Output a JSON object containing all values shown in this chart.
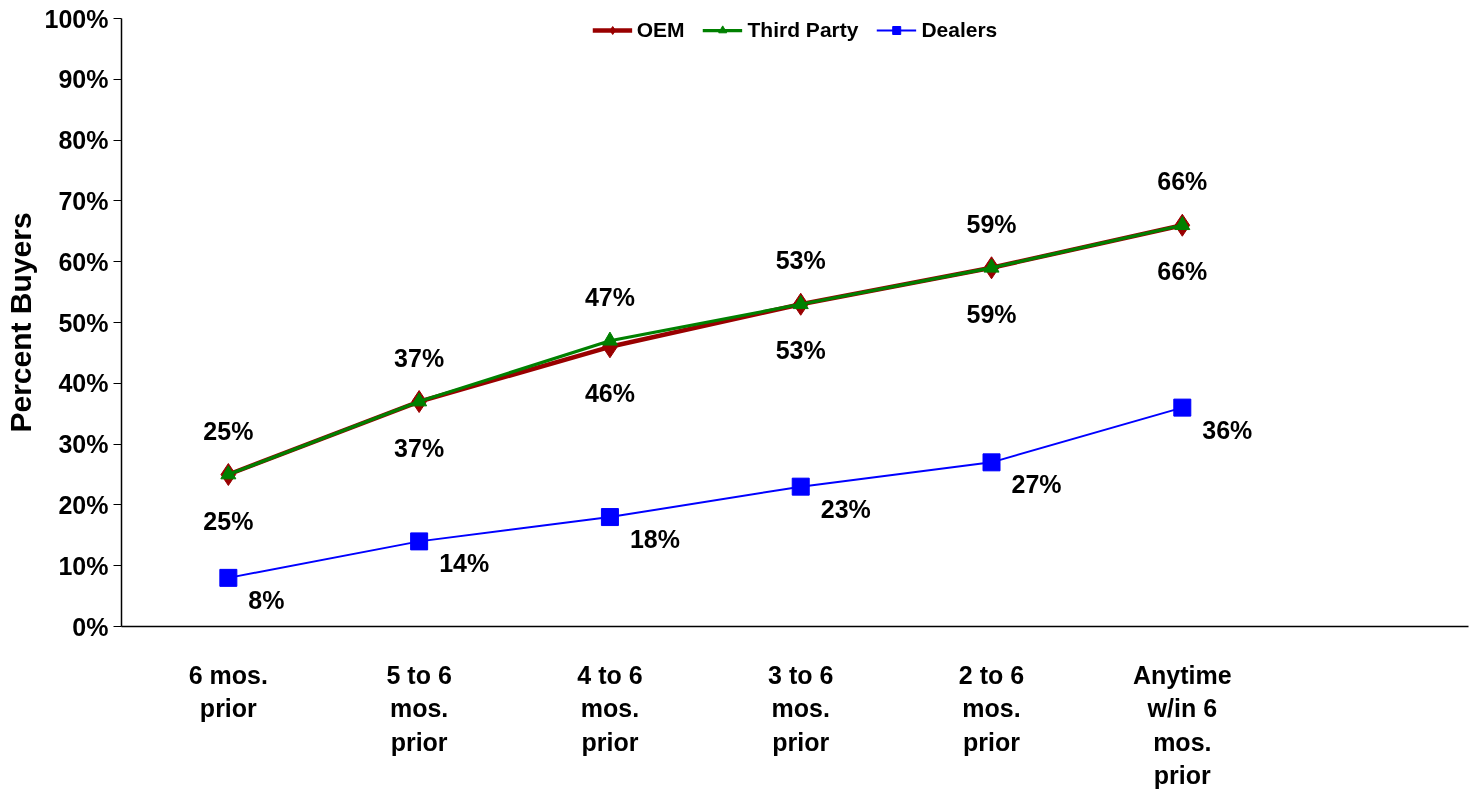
{
  "chart_data": {
    "type": "line",
    "ylabel": "Percent Buyers",
    "categories": [
      "6 mos. prior",
      "5 to 6 mos. prior",
      "4 to 6 mos. prior",
      "3 to 6 mos. prior",
      "2 to 6 mos. prior",
      "Anytime w/in 6 mos. prior"
    ],
    "series": [
      {
        "name": "OEM",
        "color": "#990000",
        "marker": "diamond",
        "values": [
          25,
          37,
          46,
          53,
          59,
          66
        ],
        "value_labels": [
          "25%",
          "37%",
          "46%",
          "53%",
          "59%",
          "66%"
        ]
      },
      {
        "name": "Third Party",
        "color": "#008000",
        "marker": "triangle",
        "values": [
          25,
          37,
          47,
          53,
          59,
          66
        ],
        "value_labels": [
          "25%",
          "37%",
          "47%",
          "53%",
          "59%",
          "66%"
        ]
      },
      {
        "name": "Dealers",
        "color": "#0000ff",
        "marker": "square",
        "values": [
          8,
          14,
          18,
          23,
          27,
          36
        ],
        "value_labels": [
          "8%",
          "14%",
          "18%",
          "23%",
          "27%",
          "36%"
        ]
      }
    ],
    "ylim": [
      0,
      100
    ],
    "yticks": [
      {
        "value": 0,
        "label": "0%"
      },
      {
        "value": 10,
        "label": "10%"
      },
      {
        "value": 20,
        "label": "20%"
      },
      {
        "value": 30,
        "label": "30%"
      },
      {
        "value": 40,
        "label": "40%"
      },
      {
        "value": 50,
        "label": "50%"
      },
      {
        "value": 60,
        "label": "60%"
      },
      {
        "value": 70,
        "label": "70%"
      },
      {
        "value": 80,
        "label": "80%"
      },
      {
        "value": 90,
        "label": "90%"
      },
      {
        "value": 100,
        "label": "100%"
      }
    ],
    "grid": false,
    "legend": "top",
    "line_style": "solid"
  }
}
